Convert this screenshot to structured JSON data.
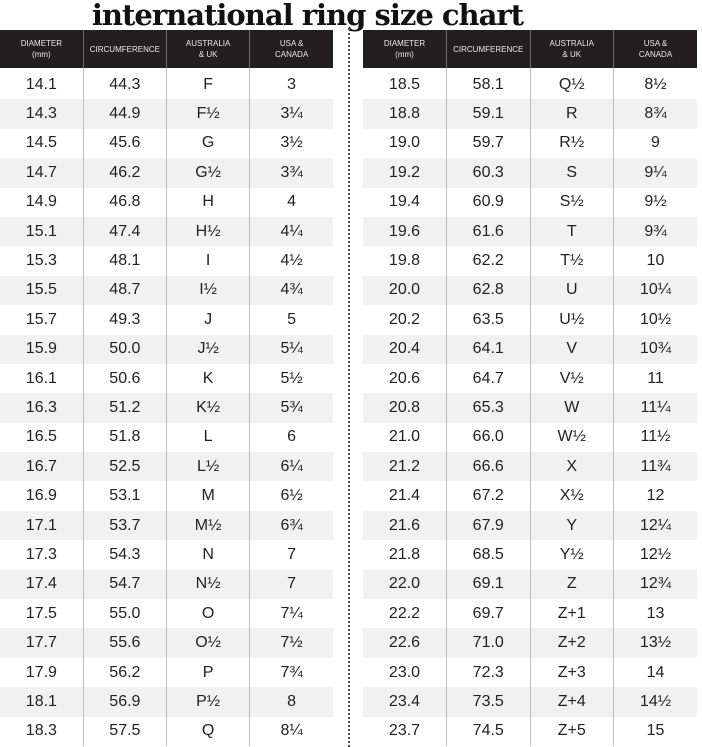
{
  "title": "international ring size chart",
  "headers": [
    "DIAMETER\n(mm)",
    "CIRCUMFERENCE",
    "AUSTRALIA\n& UK",
    "USA &\nCANADA"
  ],
  "left_rows": [
    [
      "14.1",
      "44.3",
      "F",
      "3"
    ],
    [
      "14.3",
      "44.9",
      "F½",
      "3¼"
    ],
    [
      "14.5",
      "45.6",
      "G",
      "3½"
    ],
    [
      "14.7",
      "46.2",
      "G½",
      "3¾"
    ],
    [
      "14.9",
      "46.8",
      "H",
      "4"
    ],
    [
      "15.1",
      "47.4",
      "H½",
      "4¼"
    ],
    [
      "15.3",
      "48.1",
      "I",
      "4½"
    ],
    [
      "15.5",
      "48.7",
      "I½",
      "4¾"
    ],
    [
      "15.7",
      "49.3",
      "J",
      "5"
    ],
    [
      "15.9",
      "50.0",
      "J½",
      "5¼"
    ],
    [
      "16.1",
      "50.6",
      "K",
      "5½"
    ],
    [
      "16.3",
      "51.2",
      "K½",
      "5¾"
    ],
    [
      "16.5",
      "51.8",
      "L",
      "6"
    ],
    [
      "16.7",
      "52.5",
      "L½",
      "6¼"
    ],
    [
      "16.9",
      "53.1",
      "M",
      "6½"
    ],
    [
      "17.1",
      "53.7",
      "M½",
      "6¾"
    ],
    [
      "17.3",
      "54.3",
      "N",
      "7"
    ],
    [
      "17.4",
      "54.7",
      "N½",
      "7"
    ],
    [
      "17.5",
      "55.0",
      "O",
      "7¼"
    ],
    [
      "17.7",
      "55.6",
      "O½",
      "7½"
    ],
    [
      "17.9",
      "56.2",
      "P",
      "7¾"
    ],
    [
      "18.1",
      "56.9",
      "P½",
      "8"
    ],
    [
      "18.3",
      "57.5",
      "Q",
      "8¼"
    ]
  ],
  "right_rows": [
    [
      "18.5",
      "58.1",
      "Q½",
      "8½"
    ],
    [
      "18.8",
      "59.1",
      "R",
      "8¾"
    ],
    [
      "19.0",
      "59.7",
      "R½",
      "9"
    ],
    [
      "19.2",
      "60.3",
      "S",
      "9¼"
    ],
    [
      "19.4",
      "60.9",
      "S½",
      "9½"
    ],
    [
      "19.6",
      "61.6",
      "T",
      "9¾"
    ],
    [
      "19.8",
      "62.2",
      "T½",
      "10"
    ],
    [
      "20.0",
      "62.8",
      "U",
      "10¼"
    ],
    [
      "20.2",
      "63.5",
      "U½",
      "10½"
    ],
    [
      "20.4",
      "64.1",
      "V",
      "10¾"
    ],
    [
      "20.6",
      "64.7",
      "V½",
      "11"
    ],
    [
      "20.8",
      "65.3",
      "W",
      "11¼"
    ],
    [
      "21.0",
      "66.0",
      "W½",
      "11½"
    ],
    [
      "21.2",
      "66.6",
      "X",
      "11¾"
    ],
    [
      "21.4",
      "67.2",
      "X½",
      "12"
    ],
    [
      "21.6",
      "67.9",
      "Y",
      "12¼"
    ],
    [
      "21.8",
      "68.5",
      "Y½",
      "12½"
    ],
    [
      "22.0",
      "69.1",
      "Z",
      "12¾"
    ],
    [
      "22.2",
      "69.7",
      "Z+1",
      "13"
    ],
    [
      "22.6",
      "71.0",
      "Z+2",
      "13½"
    ],
    [
      "23.0",
      "72.3",
      "Z+3",
      "14"
    ],
    [
      "23.4",
      "73.5",
      "Z+4",
      "14½"
    ],
    [
      "23.7",
      "74.5",
      "Z+5",
      "15"
    ]
  ],
  "colors": {
    "header_bg": "#231f20",
    "alt_row": "#f1f1f1"
  }
}
